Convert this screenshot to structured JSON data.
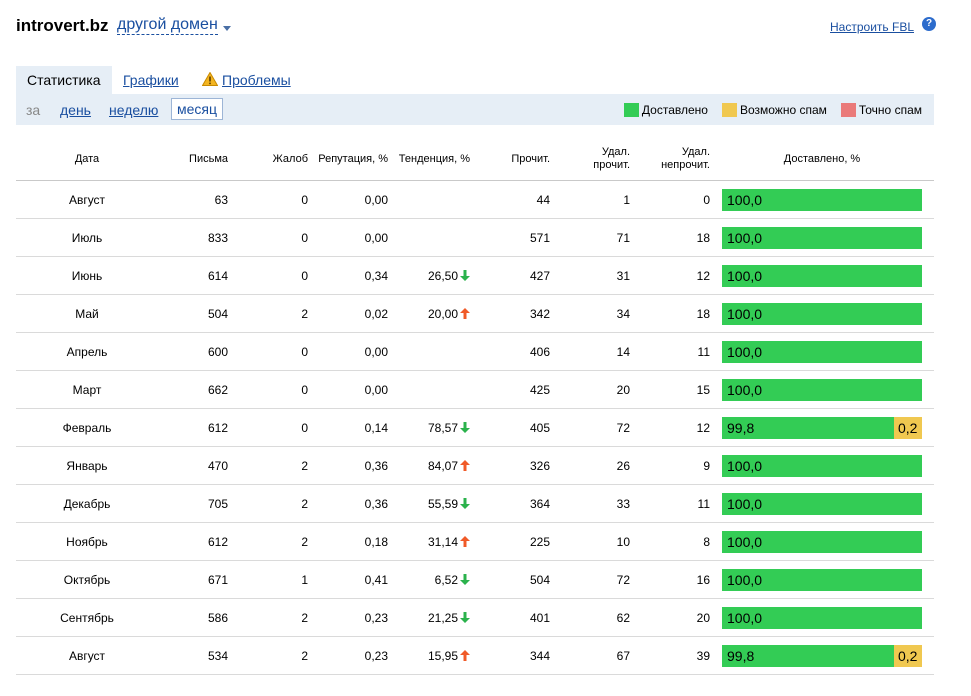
{
  "header": {
    "domain": "introvert.bz",
    "other_domain": "другой домен",
    "fbl_link": "Настроить FBL",
    "help": "?"
  },
  "tabs": [
    {
      "label": "Статистика",
      "active": true
    },
    {
      "label": "Графики",
      "active": false
    },
    {
      "label": "Проблемы",
      "active": false
    }
  ],
  "period": {
    "label": "за",
    "options": [
      "день",
      "неделю",
      "месяц"
    ],
    "selected": "месяц"
  },
  "legend": [
    {
      "label": "Доставлено",
      "color": "#33cc55"
    },
    {
      "label": "Возможно спам",
      "color": "#f0c850"
    },
    {
      "label": "Точно спам",
      "color": "#ea7a7a"
    }
  ],
  "table": {
    "columns": {
      "date": "Дата",
      "letters": "Письма",
      "complaints": "Жалоб",
      "reputation": "Репутация, %",
      "trend": "Тенденция, %",
      "read": "Прочит.",
      "deleted_read_1": "Удал.",
      "deleted_read_2": "прочит.",
      "deleted_unread_1": "Удал.",
      "deleted_unread_2": "непрочит.",
      "delivered": "Доставлено, %"
    },
    "rows": [
      {
        "date": "Август",
        "letters": "63",
        "complaints": "0",
        "reputation": "0,00",
        "trend": "",
        "trend_dir": "",
        "read": "44",
        "del_read": "1",
        "del_unread": "0",
        "delivered": "100,0",
        "delivered_value": 100.0,
        "spam": "",
        "spam_value": 0
      },
      {
        "date": "Июль",
        "letters": "833",
        "complaints": "0",
        "reputation": "0,00",
        "trend": "",
        "trend_dir": "",
        "read": "571",
        "del_read": "71",
        "del_unread": "18",
        "delivered": "100,0",
        "delivered_value": 100.0,
        "spam": "",
        "spam_value": 0
      },
      {
        "date": "Июнь",
        "letters": "614",
        "complaints": "0",
        "reputation": "0,34",
        "trend": "26,50",
        "trend_dir": "down",
        "read": "427",
        "del_read": "31",
        "del_unread": "12",
        "delivered": "100,0",
        "delivered_value": 100.0,
        "spam": "",
        "spam_value": 0
      },
      {
        "date": "Май",
        "letters": "504",
        "complaints": "2",
        "reputation": "0,02",
        "trend": "20,00",
        "trend_dir": "up",
        "read": "342",
        "del_read": "34",
        "del_unread": "18",
        "delivered": "100,0",
        "delivered_value": 100.0,
        "spam": "",
        "spam_value": 0
      },
      {
        "date": "Апрель",
        "letters": "600",
        "complaints": "0",
        "reputation": "0,00",
        "trend": "",
        "trend_dir": "",
        "read": "406",
        "del_read": "14",
        "del_unread": "11",
        "delivered": "100,0",
        "delivered_value": 100.0,
        "spam": "",
        "spam_value": 0
      },
      {
        "date": "Март",
        "letters": "662",
        "complaints": "0",
        "reputation": "0,00",
        "trend": "",
        "trend_dir": "",
        "read": "425",
        "del_read": "20",
        "del_unread": "15",
        "delivered": "100,0",
        "delivered_value": 100.0,
        "spam": "",
        "spam_value": 0
      },
      {
        "date": "Февраль",
        "letters": "612",
        "complaints": "0",
        "reputation": "0,14",
        "trend": "78,57",
        "trend_dir": "down",
        "read": "405",
        "del_read": "72",
        "del_unread": "12",
        "delivered": "99,8",
        "delivered_value": 99.8,
        "spam": "0,2",
        "spam_value": 0.2
      },
      {
        "date": "Январь",
        "letters": "470",
        "complaints": "2",
        "reputation": "0,36",
        "trend": "84,07",
        "trend_dir": "up",
        "read": "326",
        "del_read": "26",
        "del_unread": "9",
        "delivered": "100,0",
        "delivered_value": 100.0,
        "spam": "",
        "spam_value": 0
      },
      {
        "date": "Декабрь",
        "letters": "705",
        "complaints": "2",
        "reputation": "0,36",
        "trend": "55,59",
        "trend_dir": "down",
        "read": "364",
        "del_read": "33",
        "del_unread": "11",
        "delivered": "100,0",
        "delivered_value": 100.0,
        "spam": "",
        "spam_value": 0
      },
      {
        "date": "Ноябрь",
        "letters": "612",
        "complaints": "2",
        "reputation": "0,18",
        "trend": "31,14",
        "trend_dir": "up",
        "read": "225",
        "del_read": "10",
        "del_unread": "8",
        "delivered": "100,0",
        "delivered_value": 100.0,
        "spam": "",
        "spam_value": 0
      },
      {
        "date": "Октябрь",
        "letters": "671",
        "complaints": "1",
        "reputation": "0,41",
        "trend": "6,52",
        "trend_dir": "down",
        "read": "504",
        "del_read": "72",
        "del_unread": "16",
        "delivered": "100,0",
        "delivered_value": 100.0,
        "spam": "",
        "spam_value": 0
      },
      {
        "date": "Сентябрь",
        "letters": "586",
        "complaints": "2",
        "reputation": "0,23",
        "trend": "21,25",
        "trend_dir": "down",
        "read": "401",
        "del_read": "62",
        "del_unread": "20",
        "delivered": "100,0",
        "delivered_value": 100.0,
        "spam": "",
        "spam_value": 0
      },
      {
        "date": "Август",
        "letters": "534",
        "complaints": "2",
        "reputation": "0,23",
        "trend": "15,95",
        "trend_dir": "up",
        "read": "344",
        "del_read": "67",
        "del_unread": "39",
        "delivered": "99,8",
        "delivered_value": 99.8,
        "spam": "0,2",
        "spam_value": 0.2
      }
    ]
  },
  "colors": {
    "link": "#1a4fa0",
    "tab_bg": "#e6eef6",
    "arrow_up": "#f05a28",
    "arrow_down": "#2bb24c"
  }
}
